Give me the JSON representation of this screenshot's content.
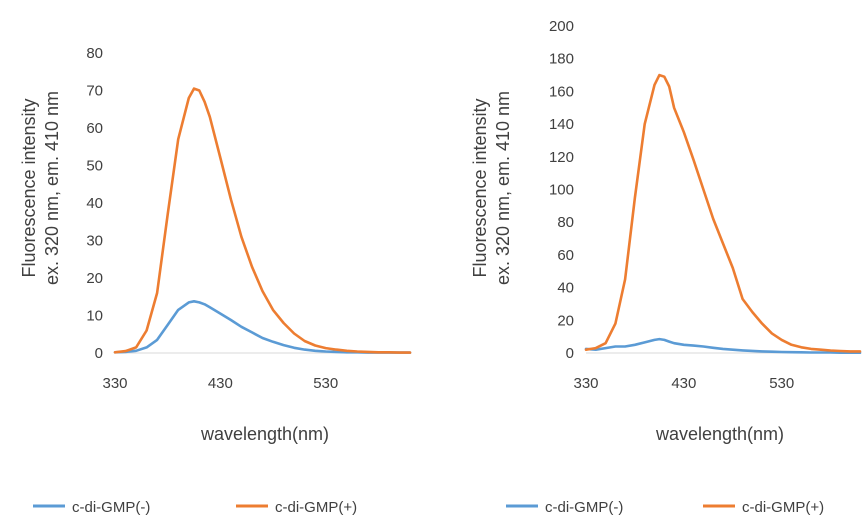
{
  "chart_data": [
    {
      "type": "line",
      "title": "",
      "xlabel": "wavelength(nm)",
      "ylabel": [
        "Fluorescence intensity",
        "ex. 320 nm, em. 410 nm"
      ],
      "xlim": [
        330,
        610
      ],
      "ylim": [
        0,
        80
      ],
      "xticks": [
        330,
        430,
        530
      ],
      "yticks": [
        0,
        10,
        20,
        30,
        40,
        50,
        60,
        70,
        80
      ],
      "grid": false,
      "legend_position": "bottom",
      "x": [
        330,
        340,
        350,
        360,
        370,
        380,
        390,
        400,
        405,
        410,
        415,
        420,
        430,
        440,
        450,
        460,
        470,
        480,
        490,
        500,
        510,
        520,
        530,
        540,
        550,
        560,
        570,
        580,
        590,
        600,
        610
      ],
      "series": [
        {
          "name": "c-di-GMP(-)",
          "color": "#5b9bd5",
          "values": [
            0.2,
            0.3,
            0.6,
            1.5,
            3.5,
            7.5,
            11.5,
            13.5,
            13.8,
            13.5,
            13,
            12.2,
            10.5,
            8.8,
            7,
            5.5,
            4,
            3,
            2.1,
            1.4,
            0.9,
            0.6,
            0.4,
            0.3,
            0.2,
            0.2,
            0.1,
            0.1,
            0.1,
            0.1,
            0.1
          ]
        },
        {
          "name": "c-di-GMP(+)",
          "color": "#ed7d31",
          "values": [
            0.2,
            0.5,
            1.5,
            6,
            16,
            37,
            57,
            68,
            70.5,
            70,
            67,
            63,
            52,
            41,
            31,
            23,
            16.5,
            11.5,
            8,
            5.2,
            3.2,
            2,
            1.3,
            0.9,
            0.6,
            0.4,
            0.3,
            0.2,
            0.2,
            0.1,
            0.1
          ]
        }
      ]
    },
    {
      "type": "line",
      "title": "",
      "xlabel": "wavelength(nm)",
      "ylabel": [
        "Fluorescence intensity",
        "ex. 320 nm, em. 410 nm"
      ],
      "xlim": [
        330,
        610
      ],
      "ylim": [
        0,
        200
      ],
      "xticks": [
        330,
        430,
        530
      ],
      "yticks": [
        0,
        20,
        40,
        60,
        80,
        100,
        120,
        140,
        160,
        180,
        200
      ],
      "grid": false,
      "legend_position": "bottom",
      "x": [
        330,
        340,
        350,
        360,
        370,
        380,
        390,
        400,
        405,
        410,
        415,
        420,
        430,
        440,
        450,
        460,
        470,
        480,
        490,
        500,
        510,
        520,
        530,
        540,
        550,
        560,
        570,
        580,
        590,
        600,
        610
      ],
      "series": [
        {
          "name": "c-di-GMP(-)",
          "color": "#5b9bd5",
          "values": [
            2.5,
            2,
            3,
            4,
            4,
            5,
            6.5,
            8,
            8.5,
            8,
            7,
            6,
            5,
            4.5,
            4,
            3.2,
            2.5,
            2,
            1.6,
            1.3,
            1,
            0.8,
            0.6,
            0.5,
            0.4,
            0.3,
            0.3,
            0.3,
            0.2,
            0.2,
            0.2
          ]
        },
        {
          "name": "c-di-GMP(+)",
          "color": "#ed7d31",
          "values": [
            2,
            3,
            6,
            18,
            45,
            95,
            140,
            164,
            170,
            169,
            163,
            150,
            135,
            118,
            100,
            82,
            67,
            52,
            33,
            25,
            18,
            12,
            8,
            5,
            3.5,
            2.5,
            2,
            1.5,
            1.2,
            1,
            1
          ]
        }
      ]
    }
  ]
}
